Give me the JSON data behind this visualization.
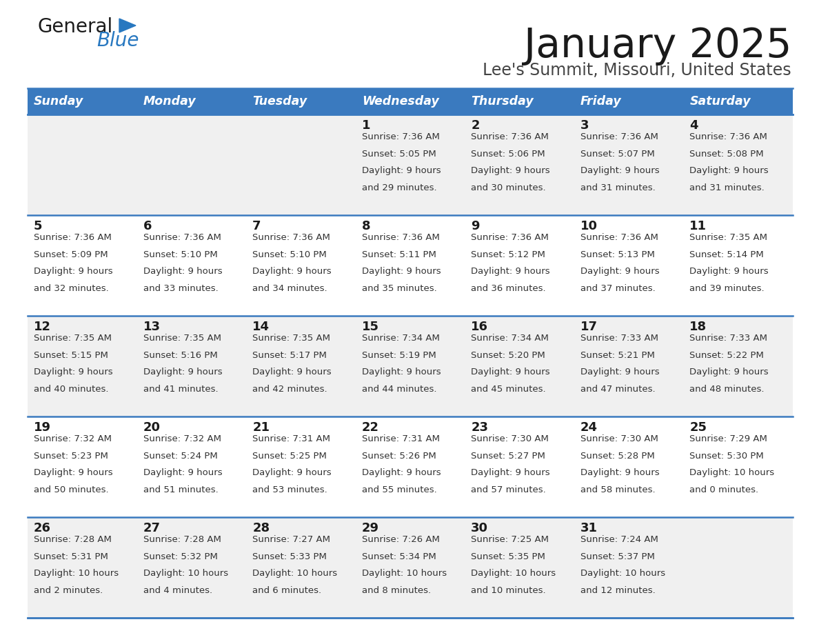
{
  "title": "January 2025",
  "subtitle": "Lee's Summit, Missouri, United States",
  "header_bg_color": "#3a7abf",
  "header_text_color": "#ffffff",
  "row_bg_odd": "#f0f0f0",
  "row_bg_even": "#ffffff",
  "cell_bg_empty_fill": "#ebebeb",
  "title_color": "#1a1a1a",
  "subtitle_color": "#444444",
  "day_num_color": "#1a1a1a",
  "info_text_color": "#333333",
  "line_color": "#3a7abf",
  "days_of_week": [
    "Sunday",
    "Monday",
    "Tuesday",
    "Wednesday",
    "Thursday",
    "Friday",
    "Saturday"
  ],
  "weeks": [
    [
      {
        "day": "",
        "sunrise": "",
        "sunset": "",
        "daylight_line1": "",
        "daylight_line2": ""
      },
      {
        "day": "",
        "sunrise": "",
        "sunset": "",
        "daylight_line1": "",
        "daylight_line2": ""
      },
      {
        "day": "",
        "sunrise": "",
        "sunset": "",
        "daylight_line1": "",
        "daylight_line2": ""
      },
      {
        "day": "1",
        "sunrise": "7:36 AM",
        "sunset": "5:05 PM",
        "daylight_line1": "Daylight: 9 hours",
        "daylight_line2": "and 29 minutes."
      },
      {
        "day": "2",
        "sunrise": "7:36 AM",
        "sunset": "5:06 PM",
        "daylight_line1": "Daylight: 9 hours",
        "daylight_line2": "and 30 minutes."
      },
      {
        "day": "3",
        "sunrise": "7:36 AM",
        "sunset": "5:07 PM",
        "daylight_line1": "Daylight: 9 hours",
        "daylight_line2": "and 31 minutes."
      },
      {
        "day": "4",
        "sunrise": "7:36 AM",
        "sunset": "5:08 PM",
        "daylight_line1": "Daylight: 9 hours",
        "daylight_line2": "and 31 minutes."
      }
    ],
    [
      {
        "day": "5",
        "sunrise": "7:36 AM",
        "sunset": "5:09 PM",
        "daylight_line1": "Daylight: 9 hours",
        "daylight_line2": "and 32 minutes."
      },
      {
        "day": "6",
        "sunrise": "7:36 AM",
        "sunset": "5:10 PM",
        "daylight_line1": "Daylight: 9 hours",
        "daylight_line2": "and 33 minutes."
      },
      {
        "day": "7",
        "sunrise": "7:36 AM",
        "sunset": "5:10 PM",
        "daylight_line1": "Daylight: 9 hours",
        "daylight_line2": "and 34 minutes."
      },
      {
        "day": "8",
        "sunrise": "7:36 AM",
        "sunset": "5:11 PM",
        "daylight_line1": "Daylight: 9 hours",
        "daylight_line2": "and 35 minutes."
      },
      {
        "day": "9",
        "sunrise": "7:36 AM",
        "sunset": "5:12 PM",
        "daylight_line1": "Daylight: 9 hours",
        "daylight_line2": "and 36 minutes."
      },
      {
        "day": "10",
        "sunrise": "7:36 AM",
        "sunset": "5:13 PM",
        "daylight_line1": "Daylight: 9 hours",
        "daylight_line2": "and 37 minutes."
      },
      {
        "day": "11",
        "sunrise": "7:35 AM",
        "sunset": "5:14 PM",
        "daylight_line1": "Daylight: 9 hours",
        "daylight_line2": "and 39 minutes."
      }
    ],
    [
      {
        "day": "12",
        "sunrise": "7:35 AM",
        "sunset": "5:15 PM",
        "daylight_line1": "Daylight: 9 hours",
        "daylight_line2": "and 40 minutes."
      },
      {
        "day": "13",
        "sunrise": "7:35 AM",
        "sunset": "5:16 PM",
        "daylight_line1": "Daylight: 9 hours",
        "daylight_line2": "and 41 minutes."
      },
      {
        "day": "14",
        "sunrise": "7:35 AM",
        "sunset": "5:17 PM",
        "daylight_line1": "Daylight: 9 hours",
        "daylight_line2": "and 42 minutes."
      },
      {
        "day": "15",
        "sunrise": "7:34 AM",
        "sunset": "5:19 PM",
        "daylight_line1": "Daylight: 9 hours",
        "daylight_line2": "and 44 minutes."
      },
      {
        "day": "16",
        "sunrise": "7:34 AM",
        "sunset": "5:20 PM",
        "daylight_line1": "Daylight: 9 hours",
        "daylight_line2": "and 45 minutes."
      },
      {
        "day": "17",
        "sunrise": "7:33 AM",
        "sunset": "5:21 PM",
        "daylight_line1": "Daylight: 9 hours",
        "daylight_line2": "and 47 minutes."
      },
      {
        "day": "18",
        "sunrise": "7:33 AM",
        "sunset": "5:22 PM",
        "daylight_line1": "Daylight: 9 hours",
        "daylight_line2": "and 48 minutes."
      }
    ],
    [
      {
        "day": "19",
        "sunrise": "7:32 AM",
        "sunset": "5:23 PM",
        "daylight_line1": "Daylight: 9 hours",
        "daylight_line2": "and 50 minutes."
      },
      {
        "day": "20",
        "sunrise": "7:32 AM",
        "sunset": "5:24 PM",
        "daylight_line1": "Daylight: 9 hours",
        "daylight_line2": "and 51 minutes."
      },
      {
        "day": "21",
        "sunrise": "7:31 AM",
        "sunset": "5:25 PM",
        "daylight_line1": "Daylight: 9 hours",
        "daylight_line2": "and 53 minutes."
      },
      {
        "day": "22",
        "sunrise": "7:31 AM",
        "sunset": "5:26 PM",
        "daylight_line1": "Daylight: 9 hours",
        "daylight_line2": "and 55 minutes."
      },
      {
        "day": "23",
        "sunrise": "7:30 AM",
        "sunset": "5:27 PM",
        "daylight_line1": "Daylight: 9 hours",
        "daylight_line2": "and 57 minutes."
      },
      {
        "day": "24",
        "sunrise": "7:30 AM",
        "sunset": "5:28 PM",
        "daylight_line1": "Daylight: 9 hours",
        "daylight_line2": "and 58 minutes."
      },
      {
        "day": "25",
        "sunrise": "7:29 AM",
        "sunset": "5:30 PM",
        "daylight_line1": "Daylight: 10 hours",
        "daylight_line2": "and 0 minutes."
      }
    ],
    [
      {
        "day": "26",
        "sunrise": "7:28 AM",
        "sunset": "5:31 PM",
        "daylight_line1": "Daylight: 10 hours",
        "daylight_line2": "and 2 minutes."
      },
      {
        "day": "27",
        "sunrise": "7:28 AM",
        "sunset": "5:32 PM",
        "daylight_line1": "Daylight: 10 hours",
        "daylight_line2": "and 4 minutes."
      },
      {
        "day": "28",
        "sunrise": "7:27 AM",
        "sunset": "5:33 PM",
        "daylight_line1": "Daylight: 10 hours",
        "daylight_line2": "and 6 minutes."
      },
      {
        "day": "29",
        "sunrise": "7:26 AM",
        "sunset": "5:34 PM",
        "daylight_line1": "Daylight: 10 hours",
        "daylight_line2": "and 8 minutes."
      },
      {
        "day": "30",
        "sunrise": "7:25 AM",
        "sunset": "5:35 PM",
        "daylight_line1": "Daylight: 10 hours",
        "daylight_line2": "and 10 minutes."
      },
      {
        "day": "31",
        "sunrise": "7:24 AM",
        "sunset": "5:37 PM",
        "daylight_line1": "Daylight: 10 hours",
        "daylight_line2": "and 12 minutes."
      },
      {
        "day": "",
        "sunrise": "",
        "sunset": "",
        "daylight_line1": "",
        "daylight_line2": ""
      }
    ]
  ],
  "logo_general_color": "#1a1a1a",
  "logo_blue_color": "#2878c0",
  "logo_triangle_color": "#2878c0"
}
